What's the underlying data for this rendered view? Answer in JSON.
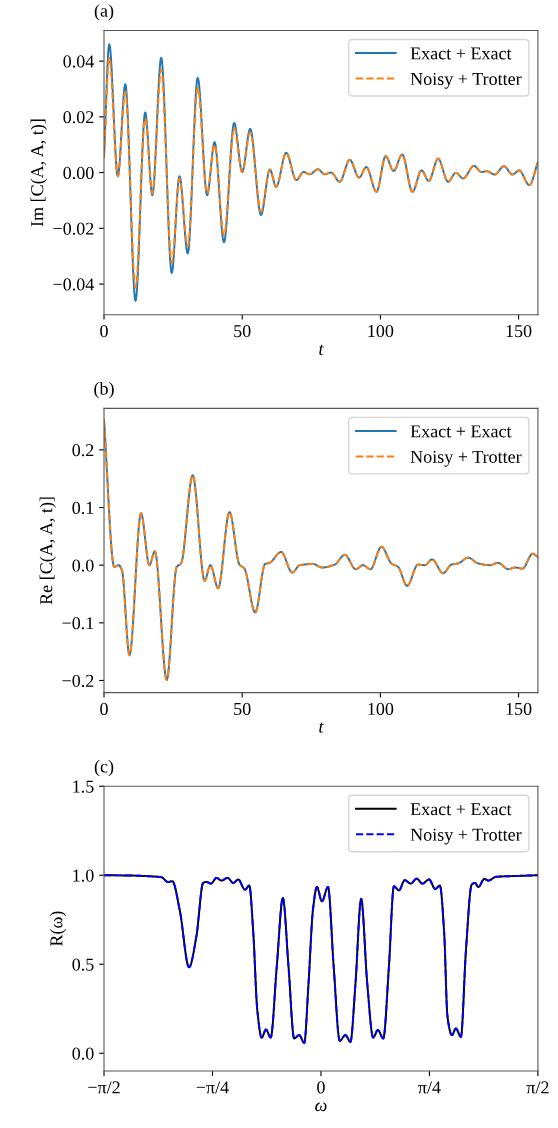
{
  "chart_data": [
    {
      "type": "line",
      "title": "(a)",
      "xlabel": "t",
      "ylabel": "Im [C(A, A, t)]",
      "legend": "top right",
      "x": [
        0,
        1.9,
        5.0,
        7.7,
        11.4,
        14.9,
        17.5,
        20.7,
        24.5,
        27.3,
        30.3,
        33.9,
        37.3,
        40.0,
        43.4,
        47.1,
        50.0,
        52.9,
        56.8,
        60.0,
        62.3,
        65.9,
        69.6,
        72.2,
        74.4,
        77.4,
        79.8,
        82.2,
        85.3,
        88.9,
        92.3,
        94.9,
        98.6,
        101.9,
        104.8,
        107.9,
        111.6,
        114.9,
        117.5,
        120.9,
        124.5,
        127.3,
        130.0,
        133.8,
        136.6,
        138.4,
        141.4,
        144.7,
        147.8,
        150.2,
        153.9,
        157
      ],
      "series": [
        {
          "name": "Exact + Exact",
          "color": "#1f77b4",
          "line_style": "solid",
          "values": [
            0.0056,
            0.046,
            -0.0013,
            0.0317,
            -0.046,
            0.0216,
            -0.0081,
            0.0412,
            -0.036,
            -0.0013,
            -0.029,
            0.034,
            -0.0081,
            0.0109,
            -0.025,
            0.0178,
            0.0002,
            0.0157,
            -0.0152,
            0.0011,
            -0.0051,
            0.0071,
            -0.0027,
            0.0002,
            -0.0006,
            0.0012,
            -0.0006,
            0,
            -0.0033,
            0.0046,
            -0.0018,
            0.002,
            -0.0069,
            0.0059,
            0.0006,
            0.0065,
            -0.0069,
            0.0008,
            -0.003,
            0.005,
            -0.0033,
            -0.0001,
            -0.0021,
            0.0024,
            0.0002,
            0.0005,
            -0.0007,
            0.0023,
            -0.0007,
            0.0008,
            -0.0045,
            0.0038
          ]
        },
        {
          "name": "Noisy + Trotter",
          "color": "#ff7f0e",
          "line_style": "dashed",
          "values": [
            0.0056,
            0.0412,
            -0.0013,
            0.029,
            -0.0413,
            0.0195,
            -0.0075,
            0.037,
            -0.0324,
            -0.0021,
            -0.0265,
            0.0305,
            -0.0075,
            0.01,
            -0.0225,
            0.016,
            0.0002,
            0.0145,
            -0.014,
            0.0011,
            -0.0051,
            0.0071,
            -0.0027,
            0.0002,
            -0.0006,
            0.0012,
            -0.0006,
            0,
            -0.0033,
            0.0046,
            -0.0018,
            0.002,
            -0.0069,
            0.0059,
            0.0006,
            0.0065,
            -0.0069,
            0.0008,
            -0.003,
            0.005,
            -0.0033,
            -0.0001,
            -0.0021,
            0.0024,
            0.0002,
            0.0005,
            -0.0007,
            0.0023,
            -0.0007,
            0.0008,
            -0.0045,
            0.0038
          ]
        }
      ],
      "xlim": [
        0,
        157
      ],
      "ylim": [
        -0.051,
        0.051
      ],
      "xticks": [
        0,
        50,
        100,
        150
      ],
      "yticks": [
        {
          "value": -0.04,
          "label": "−0.04"
        },
        {
          "value": -0.02,
          "label": "−0.02"
        },
        {
          "value": 0,
          "label": "0.00"
        },
        {
          "value": 0.02,
          "label": "0.02"
        },
        {
          "value": 0.04,
          "label": "0.04"
        }
      ]
    },
    {
      "type": "line",
      "title": "(b)",
      "xlabel": "t",
      "ylabel": "Re [C(A, A, t)]",
      "legend": "top right",
      "x": [
        0,
        3.7,
        5.3,
        6.5,
        9.2,
        13.4,
        16.4,
        18.4,
        22.7,
        26.3,
        27.9,
        32.1,
        36.4,
        38.5,
        41.3,
        45.4,
        49.0,
        50.8,
        54.7,
        58.3,
        59.9,
        64.1,
        68.1,
        70.8,
        75.6,
        79.0,
        83.5,
        87.1,
        91.1,
        93.7,
        96.4,
        100.4,
        104.0,
        106.4,
        109.7,
        113.6,
        116.1,
        118.7,
        122.7,
        125.7,
        128.1,
        131.8,
        135.4,
        139.6,
        142.6,
        146.3,
        148.7,
        151.4,
        155.1,
        157
      ],
      "series": [
        {
          "name": "Exact + Exact",
          "color": "#1f77b4",
          "line_style": "solid",
          "values": [
            0.251,
            -0.003,
            0.0,
            -0.009,
            -0.156,
            0.09,
            0.0,
            0.024,
            -0.199,
            -0.003,
            0.003,
            0.156,
            -0.027,
            0.0,
            -0.04,
            0.092,
            0.001,
            -0.006,
            -0.082,
            0.002,
            0.004,
            0.023,
            -0.013,
            0.0,
            0.002,
            -0.004,
            0.001,
            0.018,
            -0.007,
            0.0,
            -0.007,
            0.032,
            0.003,
            -0.003,
            -0.036,
            0.001,
            0.0,
            0.01,
            -0.014,
            0.001,
            0.003,
            0.013,
            0.003,
            0.0,
            0.004,
            -0.007,
            -0.004,
            -0.006,
            0.02,
            0.014
          ]
        },
        {
          "name": "Noisy + Trotter",
          "color": "#ff7f0e",
          "line_style": "dashed",
          "values": [
            0.251,
            -0.003,
            0.0,
            -0.009,
            -0.156,
            0.09,
            0.0,
            0.024,
            -0.199,
            -0.003,
            0.003,
            0.156,
            -0.027,
            0.0,
            -0.04,
            0.092,
            0.001,
            -0.006,
            -0.082,
            0.002,
            0.004,
            0.023,
            -0.013,
            0.0,
            0.002,
            -0.004,
            0.001,
            0.018,
            -0.007,
            0.0,
            -0.007,
            0.032,
            0.003,
            -0.003,
            -0.036,
            0.001,
            0.0,
            0.01,
            -0.014,
            0.001,
            0.003,
            0.013,
            0.003,
            0.0,
            0.004,
            -0.007,
            -0.004,
            -0.006,
            0.02,
            0.014
          ]
        }
      ],
      "xlim": [
        0,
        157
      ],
      "ylim": [
        -0.221,
        0.272
      ],
      "xticks": [
        0,
        50,
        100,
        150
      ],
      "yticks": [
        {
          "value": -0.2,
          "label": "−0.2"
        },
        {
          "value": -0.1,
          "label": "−0.1"
        },
        {
          "value": 0,
          "label": "0.0"
        },
        0.1,
        0.2
      ]
    },
    {
      "type": "line",
      "title": "(c)",
      "xlabel": "ω",
      "ylabel": "R(ω)",
      "legend": "top right",
      "x": [
        -1.5708,
        -1.362,
        -1.241,
        -1.156,
        -1.108,
        -1.076,
        -1.023,
        -0.955,
        -0.902,
        -0.853,
        -0.829,
        -0.797,
        -0.756,
        -0.72,
        -0.676,
        -0.635,
        -0.599,
        -0.55,
        -0.519,
        -0.49,
        -0.461,
        -0.429,
        -0.398,
        -0.364,
        -0.32,
        -0.276,
        -0.235,
        -0.194,
        -0.158,
        -0.121,
        -0.09,
        -0.058,
        -0.029,
        0.007,
        0.051,
        0.092,
        0.136,
        0.177,
        0.213,
        0.25,
        0.291,
        0.335,
        0.378,
        0.412,
        0.451,
        0.492,
        0.528,
        0.565,
        0.606,
        0.65,
        0.693,
        0.735,
        0.783,
        0.827,
        0.861,
        0.892,
        0.916,
        0.948,
        0.977,
        1.013,
        1.05,
        1.091,
        1.115,
        1.139,
        1.183,
        1.212,
        1.268,
        1.425,
        1.5708
      ],
      "series": [
        {
          "name": "Exact + Exact",
          "color": "#000000",
          "line_style": "solid",
          "values": [
            1.0,
            0.998,
            0.994,
            0.989,
            0.962,
            0.966,
            0.806,
            0.483,
            0.656,
            0.957,
            0.962,
            0.953,
            0.985,
            0.97,
            0.985,
            0.957,
            0.976,
            0.919,
            0.942,
            0.677,
            0.242,
            0.088,
            0.133,
            0.088,
            0.487,
            0.872,
            0.487,
            0.083,
            0.102,
            0.058,
            0.393,
            0.806,
            0.934,
            0.853,
            0.934,
            0.487,
            0.07,
            0.102,
            0.064,
            0.393,
            0.867,
            0.393,
            0.088,
            0.13,
            0.083,
            0.487,
            0.938,
            0.915,
            0.972,
            0.953,
            0.981,
            0.953,
            0.976,
            0.923,
            0.942,
            0.677,
            0.205,
            0.102,
            0.139,
            0.092,
            0.581,
            0.947,
            0.957,
            0.934,
            0.979,
            0.97,
            0.991,
            0.996,
            1.0
          ]
        },
        {
          "name": "Noisy + Trotter",
          "color": "#0000ff",
          "line_style": "dashed",
          "values": [
            1.0,
            0.998,
            0.994,
            0.989,
            0.962,
            0.966,
            0.806,
            0.483,
            0.656,
            0.957,
            0.962,
            0.953,
            0.985,
            0.97,
            0.985,
            0.957,
            0.976,
            0.919,
            0.942,
            0.677,
            0.242,
            0.088,
            0.133,
            0.088,
            0.487,
            0.872,
            0.487,
            0.083,
            0.102,
            0.058,
            0.393,
            0.806,
            0.934,
            0.853,
            0.934,
            0.487,
            0.07,
            0.102,
            0.064,
            0.393,
            0.867,
            0.393,
            0.088,
            0.13,
            0.083,
            0.487,
            0.938,
            0.915,
            0.972,
            0.953,
            0.981,
            0.953,
            0.976,
            0.923,
            0.942,
            0.677,
            0.205,
            0.102,
            0.139,
            0.092,
            0.581,
            0.947,
            0.957,
            0.934,
            0.979,
            0.97,
            0.991,
            0.996,
            1.0
          ]
        }
      ],
      "xlim": [
        -1.5708,
        1.5708
      ],
      "ylim": [
        -0.1,
        1.5
      ],
      "xticks": [
        {
          "value": -1.5708,
          "label": "−π/2"
        },
        {
          "value": -0.7854,
          "label": "−π/4"
        },
        {
          "value": 0,
          "label": "0"
        },
        {
          "value": 0.7854,
          "label": "π/4"
        },
        {
          "value": 1.5708,
          "label": "π/2"
        }
      ],
      "yticks": [
        {
          "value": 0,
          "label": "0.0"
        },
        {
          "value": 0.5,
          "label": "0.5"
        },
        {
          "value": 1.0,
          "label": "1.0"
        },
        {
          "value": 1.5,
          "label": "1.5"
        }
      ]
    }
  ]
}
